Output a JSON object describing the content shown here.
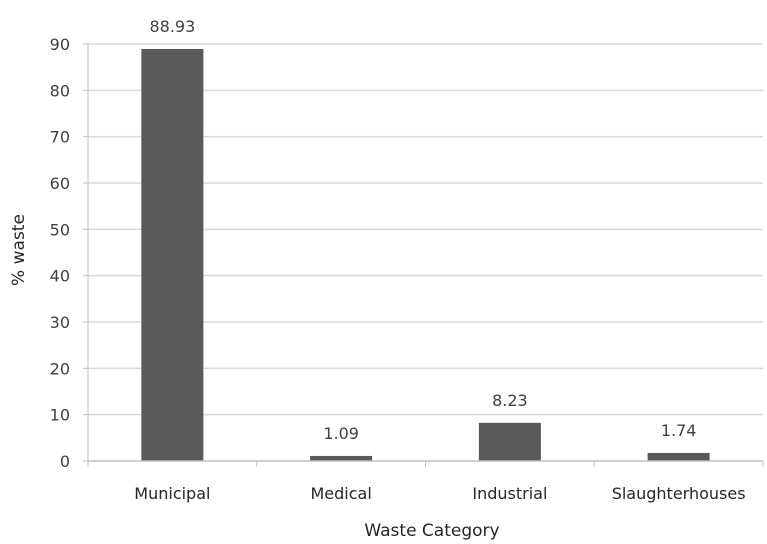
{
  "chart_data": {
    "type": "bar",
    "categories": [
      "Municipal",
      "Medical",
      "Industrial",
      "Slaughterhouses"
    ],
    "values": [
      88.93,
      1.09,
      8.23,
      1.74
    ],
    "data_labels": [
      "88.93",
      "1.09",
      "8.23",
      "1.74"
    ],
    "xlabel": "Waste Category",
    "ylabel": "% waste",
    "ylim": [
      0,
      90
    ],
    "yticks": [
      "0",
      "10",
      "20",
      "30",
      "40",
      "50",
      "60",
      "70",
      "80",
      "90"
    ],
    "grid": true,
    "bar_color": "#595959",
    "grid_color": "#d9d9d9",
    "legend": "none"
  }
}
